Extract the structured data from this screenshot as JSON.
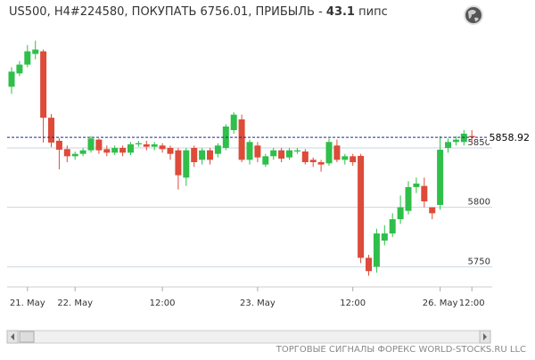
{
  "chart_data": {
    "type": "candlestick",
    "title": "US500, H4#224580, ПОКУПАТЬ 6756.01, ПРИБЫЛЬ -",
    "profit": 43.1,
    "profit_unit": "пипс",
    "footer": "ТОРГОВЫЕ СИГНАЛЫ ФОРЕКС WORLD-STOCKS.RU LLC",
    "up_color": "#2fbf4a",
    "down_color": "#dd4b39",
    "current_price": 5858.92,
    "ylim": [
      5733,
      5952
    ],
    "yticks": [
      5750,
      5800,
      5850
    ],
    "grid": true,
    "categories": [
      null,
      null,
      "21. May",
      null,
      null,
      null,
      null,
      null,
      "22. May",
      null,
      null,
      null,
      null,
      null,
      null,
      null,
      null,
      null,
      null,
      "12:00",
      null,
      null,
      null,
      null,
      null,
      null,
      null,
      null,
      null,
      null,
      null,
      "23. May",
      null,
      null,
      null,
      null,
      null,
      null,
      null,
      null,
      null,
      null,
      null,
      "12:00",
      null,
      null,
      null,
      null,
      null,
      null,
      null,
      null,
      null,
      null,
      "26. May",
      null,
      null,
      null,
      "12:00"
    ],
    "open": [
      5901.5,
      5912.7,
      5920.1,
      5929.1,
      5931.3,
      5875.4,
      5856,
      5849,
      5843,
      5845,
      5848,
      5857,
      5849,
      5846,
      5850,
      5846,
      5853,
      5853,
      5851,
      5852,
      5850,
      5848,
      5825,
      5850,
      5840,
      5848,
      5845,
      5850,
      5865,
      5874,
      5840,
      5852,
      5836,
      5843,
      5848,
      5842,
      5847,
      5847,
      5840,
      5838,
      5837,
      5852,
      5840,
      5843,
      5843.3,
      5757.5,
      5750,
      5772,
      5778,
      5790,
      5797,
      5817,
      5818,
      5800,
      5802,
      5850,
      5855,
      5855,
      5860
    ],
    "close": [
      5914.2,
      5920.1,
      5931.3,
      5932.8,
      5875.4,
      5854.5,
      5848.5,
      5843,
      5845,
      5848,
      5858,
      5848,
      5846,
      5850,
      5846,
      5853,
      5854,
      5851,
      5853,
      5849,
      5845,
      5827,
      5848,
      5838,
      5848,
      5840,
      5852,
      5868,
      5878,
      5840,
      5855,
      5842,
      5843,
      5848,
      5841,
      5848,
      5848,
      5838,
      5838,
      5836,
      5855,
      5840,
      5843,
      5838,
      5757.5,
      5746.3,
      5778,
      5778,
      5790,
      5800,
      5817,
      5820,
      5805,
      5795,
      5848.5,
      5855,
      5857,
      5862,
      5859
    ],
    "high": [
      5917.9,
      5923.1,
      5936.6,
      5940.3,
      5932.8,
      5878.4,
      5858.2,
      5852,
      5847,
      5850,
      5860,
      5858,
      5852,
      5852,
      5852,
      5855,
      5856,
      5856,
      5855,
      5854,
      5852,
      5850,
      5850,
      5852,
      5850,
      5850,
      5854,
      5870,
      5880,
      5878,
      5857,
      5855,
      5845,
      5850,
      5850,
      5850,
      5850,
      5849,
      5842,
      5840,
      5858,
      5857,
      5845,
      5845,
      5845,
      5760,
      5782,
      5785,
      5795,
      5810,
      5822,
      5825,
      5825,
      5800,
      5860,
      5858,
      5860,
      5865,
      5865
    ],
    "low": [
      5895.5,
      5910.4,
      5917.9,
      5924.6,
      5854.5,
      5850.7,
      5832,
      5838,
      5840,
      5843,
      5846,
      5845,
      5843,
      5844,
      5843,
      5844,
      5851,
      5848,
      5848,
      5846,
      5840,
      5815,
      5818,
      5834,
      5836,
      5836,
      5842,
      5848,
      5862,
      5838,
      5836,
      5838,
      5834,
      5840,
      5838,
      5840,
      5845,
      5836,
      5834,
      5830,
      5835,
      5838,
      5836,
      5835,
      5753,
      5742.5,
      5745,
      5768,
      5775,
      5786,
      5794,
      5812,
      5800,
      5790,
      5798,
      5846,
      5852,
      5852,
      5855
    ]
  }
}
